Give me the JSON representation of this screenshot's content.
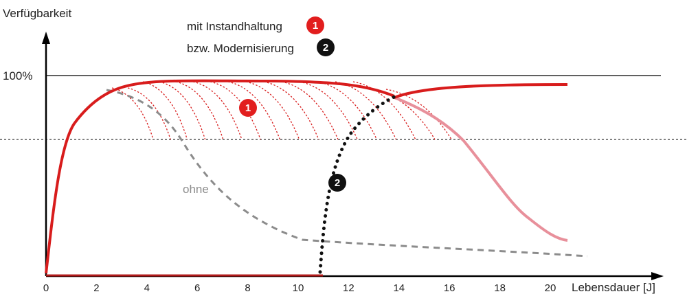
{
  "chart_data": {
    "type": "line",
    "ylabel": "Verfügbarkeit",
    "xlabel": "Lebensdauer [J]",
    "y_reference_label": "100%",
    "xlim": [
      0,
      21
    ],
    "x_ticks": [
      "0",
      "2",
      "4",
      "6",
      "8",
      "10",
      "12",
      "14",
      "16",
      "18",
      "20"
    ],
    "legend": [
      {
        "text": "mit Instandhaltung",
        "badge": "1",
        "color": "#e21e1e"
      },
      {
        "text": "bzw. Modernisierung",
        "badge": "2",
        "color": "#111111"
      }
    ],
    "annotations": [
      {
        "text": "ohne",
        "color": "#8c8c8c"
      },
      {
        "text": "1",
        "kind": "badge",
        "color": "#e21e1e"
      },
      {
        "text": "2",
        "kind": "badge",
        "color": "#111111"
      }
    ],
    "colors": {
      "instandhaltung": "#d81c1c",
      "faded": "#e8909b",
      "ohne": "#8c8c8c",
      "modernisierung": "#111111"
    }
  }
}
